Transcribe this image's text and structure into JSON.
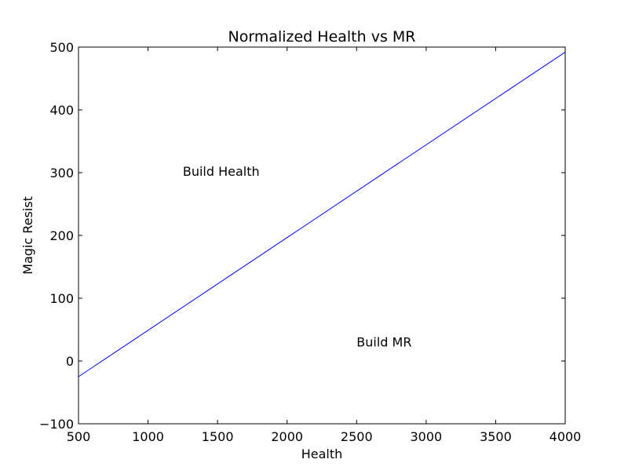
{
  "chart_data": {
    "type": "line",
    "title": "Normalized Health vs MR",
    "xlabel": "Health",
    "ylabel": "Magic Resist",
    "xlim": [
      500,
      4000
    ],
    "ylim": [
      -100,
      500
    ],
    "xticks": [
      500,
      1000,
      1500,
      2000,
      2500,
      3000,
      3500,
      4000
    ],
    "yticks": [
      -100,
      0,
      100,
      200,
      300,
      400,
      500
    ],
    "xtick_labels": [
      "500",
      "1000",
      "1500",
      "2000",
      "2500",
      "3000",
      "3500",
      "4000"
    ],
    "ytick_labels": [
      "−100",
      "0",
      "100",
      "200",
      "300",
      "400",
      "500"
    ],
    "grid": false,
    "series": [
      {
        "color": "#0000ff",
        "x": [
          500,
          4000
        ],
        "y": [
          -25,
          492
        ]
      }
    ],
    "annotations": [
      {
        "text": "Build Health",
        "x": 1250,
        "y": 295
      },
      {
        "text": "Build MR",
        "x": 2500,
        "y": 23
      }
    ]
  }
}
